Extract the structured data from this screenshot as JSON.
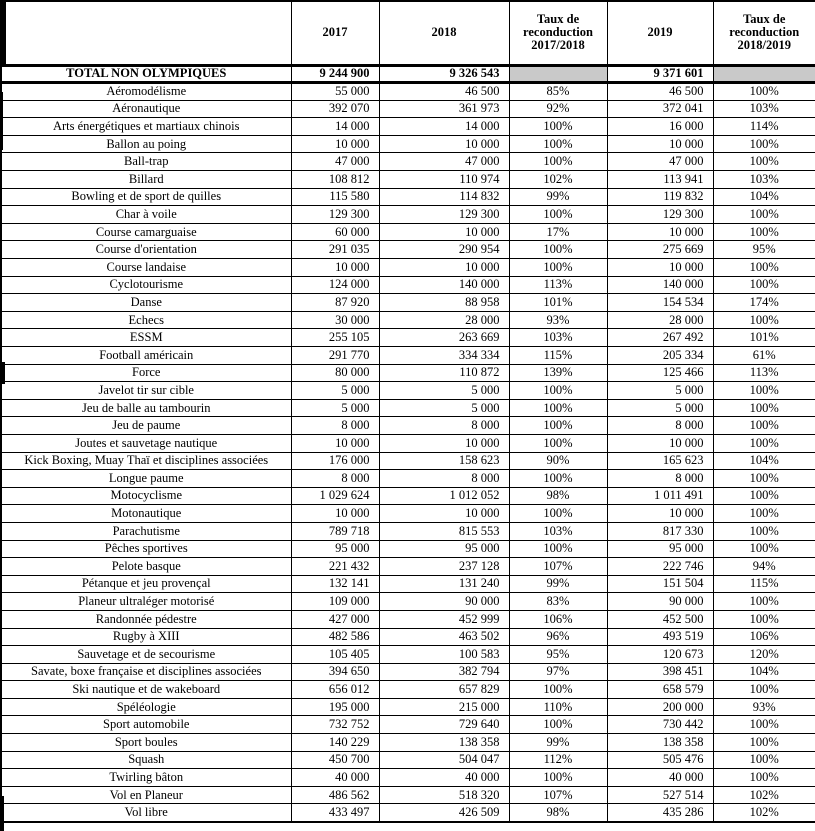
{
  "colors": {
    "shade": "#c9c9c9",
    "border": "#000000",
    "background": "#ffffff"
  },
  "table": {
    "headers": [
      "",
      "2017",
      "2018",
      "Taux de\nreconduction\n2017/2018",
      "2019",
      "Taux de\nreconduction\n2018/2019"
    ],
    "total": {
      "label": "TOTAL NON OLYMPIQUES",
      "v2017": "9 244 900",
      "v2018": "9 326 543",
      "t1": "",
      "v2019": "9 371 601",
      "t2": ""
    },
    "rows": [
      {
        "label": "Aéromodélisme",
        "v2017": "55 000",
        "v2018": "46 500",
        "t1": "85%",
        "v2019": "46 500",
        "t2": "100%"
      },
      {
        "label": "Aéronautique",
        "v2017": "392 070",
        "v2018": "361 973",
        "t1": "92%",
        "v2019": "372 041",
        "t2": "103%"
      },
      {
        "label": "Arts énergétiques et martiaux chinois",
        "v2017": "14 000",
        "v2018": "14 000",
        "t1": "100%",
        "v2019": "16 000",
        "t2": "114%"
      },
      {
        "label": "Ballon au poing",
        "v2017": "10 000",
        "v2018": "10 000",
        "t1": "100%",
        "v2019": "10 000",
        "t2": "100%"
      },
      {
        "label": "Ball-trap",
        "v2017": "47 000",
        "v2018": "47 000",
        "t1": "100%",
        "v2019": "47 000",
        "t2": "100%"
      },
      {
        "label": "Billard",
        "v2017": "108 812",
        "v2018": "110 974",
        "t1": "102%",
        "v2019": "113 941",
        "t2": "103%"
      },
      {
        "label": "Bowling et de sport de quilles",
        "v2017": "115 580",
        "v2018": "114 832",
        "t1": "99%",
        "v2019": "119 832",
        "t2": "104%"
      },
      {
        "label": "Char à voile",
        "v2017": "129 300",
        "v2018": "129 300",
        "t1": "100%",
        "v2019": "129 300",
        "t2": "100%"
      },
      {
        "label": "Course camarguaise",
        "v2017": "60 000",
        "v2018": "10 000",
        "t1": "17%",
        "v2019": "10 000",
        "t2": "100%"
      },
      {
        "label": "Course d'orientation",
        "v2017": "291 035",
        "v2018": "290 954",
        "t1": "100%",
        "v2019": "275 669",
        "t2": "95%"
      },
      {
        "label": "Course landaise",
        "v2017": "10 000",
        "v2018": "10 000",
        "t1": "100%",
        "v2019": "10 000",
        "t2": "100%"
      },
      {
        "label": "Cyclotourisme",
        "v2017": "124 000",
        "v2018": "140 000",
        "t1": "113%",
        "v2019": "140 000",
        "t2": "100%"
      },
      {
        "label": "Danse",
        "v2017": "87 920",
        "v2018": "88 958",
        "t1": "101%",
        "v2019": "154 534",
        "t2": "174%"
      },
      {
        "label": "Echecs",
        "v2017": "30 000",
        "v2018": "28 000",
        "t1": "93%",
        "v2019": "28 000",
        "t2": "100%"
      },
      {
        "label": "ESSM",
        "v2017": "255 105",
        "v2018": "263 669",
        "t1": "103%",
        "v2019": "267 492",
        "t2": "101%"
      },
      {
        "label": "Football américain",
        "v2017": "291 770",
        "v2018": "334 334",
        "t1": "115%",
        "v2019": "205 334",
        "t2": "61%"
      },
      {
        "label": "Force",
        "v2017": "80 000",
        "v2018": "110 872",
        "t1": "139%",
        "v2019": "125 466",
        "t2": "113%"
      },
      {
        "label": "Javelot tir sur cible",
        "v2017": "5 000",
        "v2018": "5 000",
        "t1": "100%",
        "v2019": "5 000",
        "t2": "100%"
      },
      {
        "label": "Jeu de balle au tambourin",
        "v2017": "5 000",
        "v2018": "5 000",
        "t1": "100%",
        "v2019": "5 000",
        "t2": "100%"
      },
      {
        "label": "Jeu de paume",
        "v2017": "8 000",
        "v2018": "8 000",
        "t1": "100%",
        "v2019": "8 000",
        "t2": "100%"
      },
      {
        "label": "Joutes et sauvetage nautique",
        "v2017": "10 000",
        "v2018": "10 000",
        "t1": "100%",
        "v2019": "10 000",
        "t2": "100%"
      },
      {
        "label": "Kick Boxing, Muay Thaï et disciplines associées",
        "v2017": "176 000",
        "v2018": "158 623",
        "t1": "90%",
        "v2019": "165 623",
        "t2": "104%"
      },
      {
        "label": "Longue paume",
        "v2017": "8 000",
        "v2018": "8 000",
        "t1": "100%",
        "v2019": "8 000",
        "t2": "100%"
      },
      {
        "label": "Motocyclisme",
        "v2017": "1 029 624",
        "v2018": "1 012 052",
        "t1": "98%",
        "v2019": "1 011 491",
        "t2": "100%"
      },
      {
        "label": "Motonautique",
        "v2017": "10 000",
        "v2018": "10 000",
        "t1": "100%",
        "v2019": "10 000",
        "t2": "100%"
      },
      {
        "label": "Parachutisme",
        "v2017": "789 718",
        "v2018": "815 553",
        "t1": "103%",
        "v2019": "817 330",
        "t2": "100%"
      },
      {
        "label": "Pêches sportives",
        "v2017": "95 000",
        "v2018": "95 000",
        "t1": "100%",
        "v2019": "95 000",
        "t2": "100%"
      },
      {
        "label": "Pelote basque",
        "v2017": "221 432",
        "v2018": "237 128",
        "t1": "107%",
        "v2019": "222 746",
        "t2": "94%"
      },
      {
        "label": "Pétanque et jeu provençal",
        "v2017": "132 141",
        "v2018": "131 240",
        "t1": "99%",
        "v2019": "151 504",
        "t2": "115%"
      },
      {
        "label": "Planeur ultraléger motorisé",
        "v2017": "109 000",
        "v2018": "90 000",
        "t1": "83%",
        "v2019": "90 000",
        "t2": "100%"
      },
      {
        "label": "Randonnée pédestre",
        "v2017": "427 000",
        "v2018": "452 999",
        "t1": "106%",
        "v2019": "452 500",
        "t2": "100%"
      },
      {
        "label": "Rugby à XIII",
        "v2017": "482 586",
        "v2018": "463 502",
        "t1": "96%",
        "v2019": "493 519",
        "t2": "106%"
      },
      {
        "label": "Sauvetage et de secourisme",
        "v2017": "105 405",
        "v2018": "100 583",
        "t1": "95%",
        "v2019": "120 673",
        "t2": "120%"
      },
      {
        "label": "Savate, boxe française et disciplines associées",
        "v2017": "394 650",
        "v2018": "382 794",
        "t1": "97%",
        "v2019": "398 451",
        "t2": "104%"
      },
      {
        "label": "Ski nautique et de wakeboard",
        "v2017": "656 012",
        "v2018": "657 829",
        "t1": "100%",
        "v2019": "658 579",
        "t2": "100%"
      },
      {
        "label": "Spéléologie",
        "v2017": "195 000",
        "v2018": "215 000",
        "t1": "110%",
        "v2019": "200 000",
        "t2": "93%"
      },
      {
        "label": "Sport automobile",
        "v2017": "732 752",
        "v2018": "729 640",
        "t1": "100%",
        "v2019": "730 442",
        "t2": "100%"
      },
      {
        "label": "Sport boules",
        "v2017": "140 229",
        "v2018": "138 358",
        "t1": "99%",
        "v2019": "138 358",
        "t2": "100%"
      },
      {
        "label": "Squash",
        "v2017": "450 700",
        "v2018": "504 047",
        "t1": "112%",
        "v2019": "505 476",
        "t2": "100%"
      },
      {
        "label": "Twirling bâton",
        "v2017": "40 000",
        "v2018": "40 000",
        "t1": "100%",
        "v2019": "40 000",
        "t2": "100%"
      },
      {
        "label": "Vol en Planeur",
        "v2017": "486 562",
        "v2018": "518 320",
        "t1": "107%",
        "v2019": "527 514",
        "t2": "102%"
      },
      {
        "label": "Vol libre",
        "v2017": "433 497",
        "v2018": "426 509",
        "t1": "98%",
        "v2019": "435 286",
        "t2": "102%"
      }
    ]
  }
}
